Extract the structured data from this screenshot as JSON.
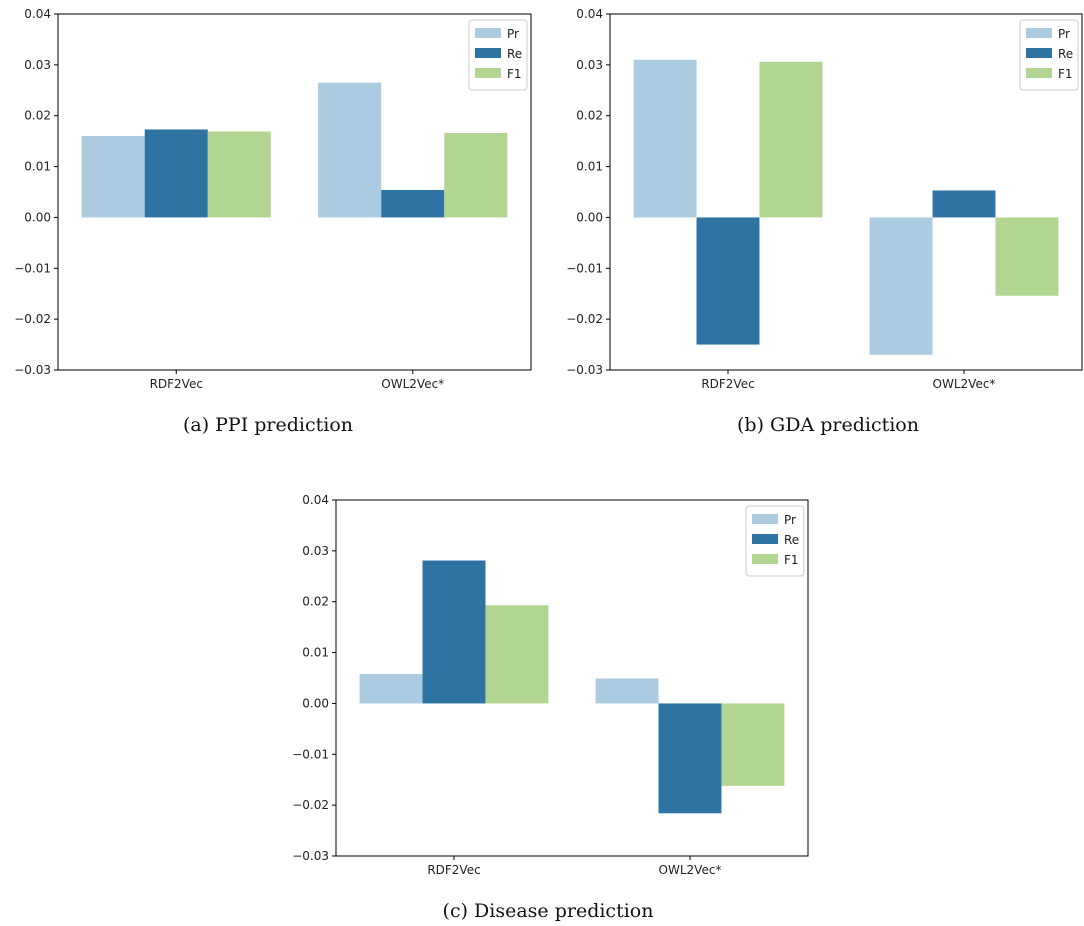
{
  "chart_data": [
    {
      "type": "bar",
      "caption": "(a) PPI prediction",
      "categories": [
        "RDF2Vec",
        "OWL2Vec*"
      ],
      "series": [
        {
          "name": "Pr",
          "values": [
            0.016,
            0.0265
          ],
          "color": "#abcbe0"
        },
        {
          "name": "Re",
          "values": [
            0.0173,
            0.0054
          ],
          "color": "#2f73a3"
        },
        {
          "name": "F1",
          "values": [
            0.0169,
            0.0166
          ],
          "color": "#b3d592"
        }
      ],
      "ylim": [
        -0.03,
        0.04
      ],
      "yticks": [
        "0.04",
        "0.03",
        "0.02",
        "0.01",
        "0.00",
        "−0.01",
        "−0.02",
        "−0.03"
      ],
      "legend_position": "top-right",
      "grid": false
    },
    {
      "type": "bar",
      "caption": "(b) GDA prediction",
      "categories": [
        "RDF2Vec",
        "OWL2Vec*"
      ],
      "series": [
        {
          "name": "Pr",
          "values": [
            0.031,
            -0.027
          ],
          "color": "#abcbe0"
        },
        {
          "name": "Re",
          "values": [
            -0.025,
            0.0053
          ],
          "color": "#2f73a3"
        },
        {
          "name": "F1",
          "values": [
            0.0306,
            -0.0154
          ],
          "color": "#b3d592"
        }
      ],
      "ylim": [
        -0.03,
        0.04
      ],
      "yticks": [
        "0.04",
        "0.03",
        "0.02",
        "0.01",
        "0.00",
        "−0.01",
        "−0.02",
        "−0.03"
      ],
      "legend_position": "top-right",
      "grid": false
    },
    {
      "type": "bar",
      "caption": "(c) Disease prediction",
      "categories": [
        "RDF2Vec",
        "OWL2Vec*"
      ],
      "series": [
        {
          "name": "Pr",
          "values": [
            0.0058,
            0.0049
          ],
          "color": "#abcbe0"
        },
        {
          "name": "Re",
          "values": [
            0.0281,
            -0.0216
          ],
          "color": "#2f73a3"
        },
        {
          "name": "F1",
          "values": [
            0.0193,
            -0.0162
          ],
          "color": "#b3d592"
        }
      ],
      "ylim": [
        -0.03,
        0.04
      ],
      "yticks": [
        "0.04",
        "0.03",
        "0.02",
        "0.01",
        "0.00",
        "−0.01",
        "−0.02",
        "−0.03"
      ],
      "legend_position": "top-right",
      "grid": false
    }
  ]
}
